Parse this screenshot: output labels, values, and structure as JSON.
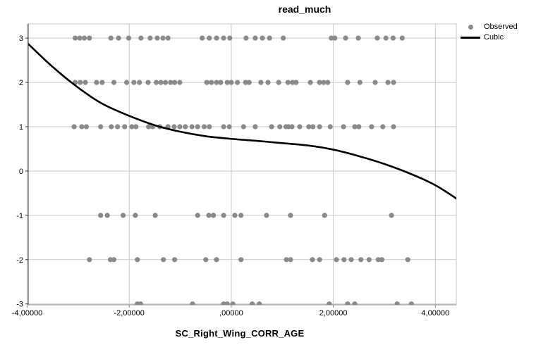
{
  "chart_title": "read_much",
  "colors": {
    "background": "#ffffff",
    "gridline": "#c9c9c9",
    "frame": "#c9c9c9",
    "y_axis": "#3a3a3a",
    "x_axis": "#8a8a8a",
    "dot": "#8a8a8a",
    "curve": "#000000",
    "text": "#000000"
  },
  "chart_data": {
    "type": "scatter",
    "title": "read_much",
    "xlabel": "SC_Right_Wing_CORR_AGE",
    "ylabel": "",
    "xlim": [
      -3.98,
      4.41
    ],
    "ylim": [
      -3.02,
      3.32
    ],
    "grid": true,
    "legend_position": "top-right",
    "x_ticks": [
      {
        "value": -4,
        "label": "-4,00000"
      },
      {
        "value": -2,
        "label": "-2,00000"
      },
      {
        "value": 0,
        "label": ",00000"
      },
      {
        "value": 2,
        "label": "2,00000"
      },
      {
        "value": 4,
        "label": "4,00000"
      }
    ],
    "y_ticks": [
      {
        "value": 3,
        "label": "3"
      },
      {
        "value": 2,
        "label": "2"
      },
      {
        "value": 1,
        "label": "1"
      },
      {
        "value": 0,
        "label": "0"
      },
      {
        "value": -1,
        "label": "-1"
      },
      {
        "value": -2,
        "label": "-2"
      },
      {
        "value": -3,
        "label": "-3"
      }
    ],
    "series": [
      {
        "name": "Observed",
        "type": "scatter",
        "color": "#8a8a8a",
        "marker": "circle",
        "rows": [
          {
            "y": 3,
            "x": [
              -3.06,
              -2.97,
              -2.88,
              -2.78,
              -2.36,
              -2.21,
              -2.01,
              -1.77,
              -1.59,
              -1.45,
              -1.34,
              -1.24,
              -0.57,
              -0.43,
              -0.29,
              -0.15,
              -0.03,
              0.29,
              0.47,
              0.61,
              0.75,
              1.02,
              1.96,
              2.03,
              2.24,
              2.49,
              2.86,
              3.03,
              3.17,
              3.35
            ]
          },
          {
            "y": 2,
            "x": [
              -3.06,
              -2.96,
              -2.86,
              -2.64,
              -2.53,
              -2.3,
              -2.05,
              -1.91,
              -1.8,
              -1.63,
              -1.47,
              -1.38,
              -1.29,
              -1.19,
              -1.11,
              -1.01,
              -0.48,
              -0.39,
              -0.29,
              -0.21,
              -0.08,
              0.0,
              0.12,
              0.28,
              0.35,
              0.58,
              0.72,
              0.93,
              1.11,
              1.2,
              1.27,
              1.55,
              1.73,
              1.81,
              1.89,
              2.28,
              2.52,
              2.82,
              3.07,
              3.18
            ]
          },
          {
            "y": 1,
            "x": [
              -3.08,
              -2.93,
              -2.84,
              -2.56,
              -2.35,
              -2.23,
              -2.09,
              -1.95,
              -1.87,
              -1.62,
              -1.54,
              -1.4,
              -1.24,
              -1.12,
              -1.01,
              -0.9,
              -0.77,
              -0.66,
              -0.53,
              -0.43,
              -0.15,
              -0.04,
              0.24,
              0.47,
              0.79,
              0.95,
              1.07,
              1.12,
              1.19,
              1.34,
              1.52,
              1.6,
              1.73,
              1.94,
              2.2,
              2.42,
              2.5,
              2.75,
              2.97,
              3.18
            ]
          },
          {
            "y": -1,
            "x": [
              -2.56,
              -2.43,
              -2.12,
              -1.88,
              -1.49,
              -0.66,
              -0.44,
              -0.35,
              -0.15,
              0.07,
              0.19,
              0.69,
              1.16,
              1.83,
              3.14
            ]
          },
          {
            "y": -2,
            "x": [
              -2.78,
              -2.37,
              -2.3,
              -1.84,
              -1.33,
              -1.11,
              -0.5,
              -0.29,
              0.19,
              1.08,
              1.16,
              1.59,
              1.73,
              2.06,
              2.21,
              2.35,
              2.54,
              2.7,
              2.88,
              2.95,
              3.46
            ]
          },
          {
            "y": -3,
            "x": [
              -1.84,
              -1.78,
              -0.76,
              -0.15,
              -0.08,
              0.03,
              0.41,
              0.55,
              1.92,
              2.28,
              2.42,
              3.25,
              3.53
            ]
          }
        ]
      },
      {
        "name": "Cubic",
        "type": "line",
        "color": "#000000",
        "points": [
          [
            -3.98,
            2.87
          ],
          [
            -3.5,
            2.35
          ],
          [
            -3.01,
            1.89
          ],
          [
            -2.53,
            1.52
          ],
          [
            -2.01,
            1.25
          ],
          [
            -1.49,
            1.03
          ],
          [
            -1.01,
            0.89
          ],
          [
            -0.53,
            0.79
          ],
          [
            -0.04,
            0.73
          ],
          [
            0.5,
            0.68
          ],
          [
            1.0,
            0.63
          ],
          [
            1.55,
            0.57
          ],
          [
            2.01,
            0.48
          ],
          [
            2.52,
            0.33
          ],
          [
            3.0,
            0.16
          ],
          [
            3.55,
            -0.08
          ],
          [
            4.0,
            -0.32
          ],
          [
            4.41,
            -0.62
          ]
        ]
      }
    ]
  },
  "legend": {
    "items": [
      {
        "label": "Observed",
        "marker": "dot"
      },
      {
        "label": "Cubic",
        "marker": "line"
      }
    ]
  }
}
